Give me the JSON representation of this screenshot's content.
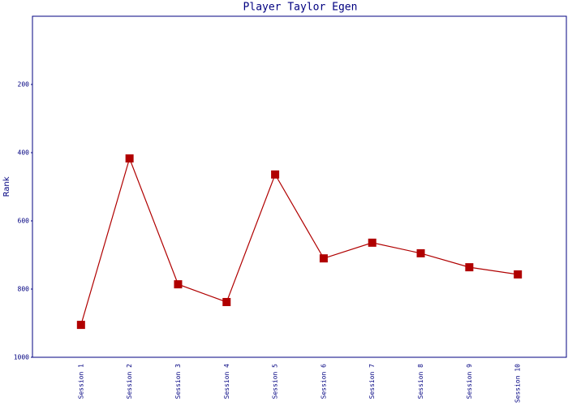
{
  "chart_data": {
    "type": "line",
    "title": "Player Taylor Egen",
    "y_label": "Rank",
    "categories": [
      "Session 1",
      "Session 2",
      "Session 3",
      "Session 4",
      "Session 5",
      "Session 6",
      "Session 7",
      "Session 8",
      "Session 9",
      "Session 10"
    ],
    "values": [
      905,
      417,
      786,
      838,
      464,
      710,
      664,
      695,
      736,
      757
    ],
    "color": "#b00000",
    "marker": "square",
    "ylim": [
      1000,
      0
    ],
    "yticks": [
      200,
      400,
      600,
      800,
      1000
    ],
    "grid": false
  }
}
